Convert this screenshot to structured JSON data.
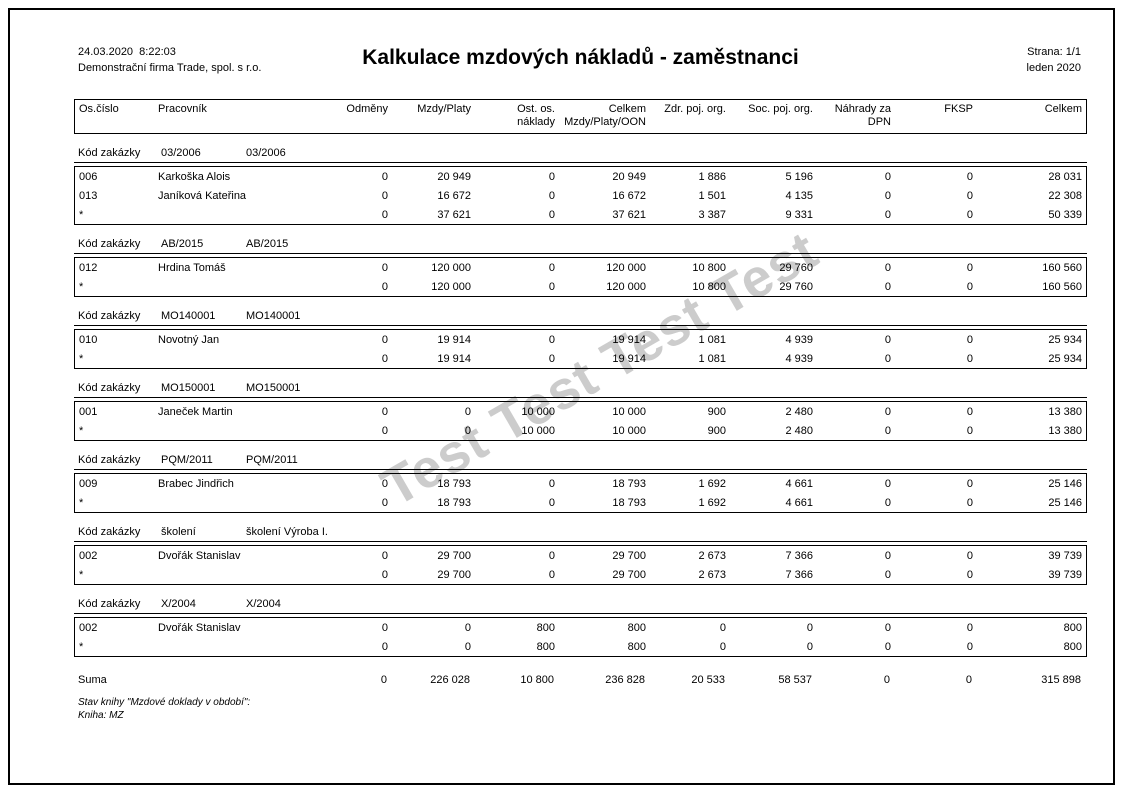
{
  "page": {
    "datetime": "24.03.2020  8:22:03",
    "company": "Demonstrační firma Trade, spol. s r.o.",
    "title": "Kalkulace mzdových nákladů - zaměstnanci",
    "page_label": "Strana: 1/1",
    "period": "leden 2020",
    "watermark": "Test Test Test Test"
  },
  "table": {
    "group_label": "Kód zakázky",
    "columns": [
      {
        "l1": "Os.číslo",
        "l2": ""
      },
      {
        "l1": "Pracovník",
        "l2": ""
      },
      {
        "l1": "Odměny",
        "l2": ""
      },
      {
        "l1": "Mzdy/Platy",
        "l2": ""
      },
      {
        "l1": "Ost. os.",
        "l2": "náklady"
      },
      {
        "l1": "Celkem",
        "l2": "Mzdy/Platy/OON"
      },
      {
        "l1": "Zdr. poj. org.",
        "l2": ""
      },
      {
        "l1": "Soc. poj. org.",
        "l2": ""
      },
      {
        "l1": "Náhrady za",
        "l2": "DPN"
      },
      {
        "l1": "FKSP",
        "l2": ""
      },
      {
        "l1": "Celkem",
        "l2": ""
      }
    ]
  },
  "groups": [
    {
      "code": "03/2006",
      "name": "03/2006",
      "rows": [
        {
          "id": "006",
          "worker": "Karkoška Alois",
          "values": [
            "0",
            "20 949",
            "0",
            "20 949",
            "1 886",
            "5 196",
            "0",
            "0",
            "28 031"
          ]
        },
        {
          "id": "013",
          "worker": "Janíková Kateřina",
          "values": [
            "0",
            "16 672",
            "0",
            "16 672",
            "1 501",
            "4 135",
            "0",
            "0",
            "22 308"
          ]
        },
        {
          "id": "*",
          "worker": "",
          "values": [
            "0",
            "37 621",
            "0",
            "37 621",
            "3 387",
            "9 331",
            "0",
            "0",
            "50 339"
          ]
        }
      ]
    },
    {
      "code": "AB/2015",
      "name": "AB/2015",
      "rows": [
        {
          "id": "012",
          "worker": "Hrdina Tomáš",
          "values": [
            "0",
            "120 000",
            "0",
            "120 000",
            "10 800",
            "29 760",
            "0",
            "0",
            "160 560"
          ]
        },
        {
          "id": "*",
          "worker": "",
          "values": [
            "0",
            "120 000",
            "0",
            "120 000",
            "10 800",
            "29 760",
            "0",
            "0",
            "160 560"
          ]
        }
      ]
    },
    {
      "code": "MO140001",
      "name": "MO140001",
      "rows": [
        {
          "id": "010",
          "worker": "Novotný Jan",
          "values": [
            "0",
            "19 914",
            "0",
            "19 914",
            "1 081",
            "4 939",
            "0",
            "0",
            "25 934"
          ]
        },
        {
          "id": "*",
          "worker": "",
          "values": [
            "0",
            "19 914",
            "0",
            "19 914",
            "1 081",
            "4 939",
            "0",
            "0",
            "25 934"
          ]
        }
      ]
    },
    {
      "code": "MO150001",
      "name": "MO150001",
      "rows": [
        {
          "id": "001",
          "worker": "Janeček Martin",
          "values": [
            "0",
            "0",
            "10 000",
            "10 000",
            "900",
            "2 480",
            "0",
            "0",
            "13 380"
          ]
        },
        {
          "id": "*",
          "worker": "",
          "values": [
            "0",
            "0",
            "10 000",
            "10 000",
            "900",
            "2 480",
            "0",
            "0",
            "13 380"
          ]
        }
      ]
    },
    {
      "code": "PQM/2011",
      "name": "PQM/2011",
      "rows": [
        {
          "id": "009",
          "worker": "Brabec Jindřich",
          "values": [
            "0",
            "18 793",
            "0",
            "18 793",
            "1 692",
            "4 661",
            "0",
            "0",
            "25 146"
          ]
        },
        {
          "id": "*",
          "worker": "",
          "values": [
            "0",
            "18 793",
            "0",
            "18 793",
            "1 692",
            "4 661",
            "0",
            "0",
            "25 146"
          ]
        }
      ]
    },
    {
      "code": "školení",
      "name": "školení Výroba I.",
      "rows": [
        {
          "id": "002",
          "worker": "Dvořák Stanislav",
          "values": [
            "0",
            "29 700",
            "0",
            "29 700",
            "2 673",
            "7 366",
            "0",
            "0",
            "39 739"
          ]
        },
        {
          "id": "*",
          "worker": "",
          "values": [
            "0",
            "29 700",
            "0",
            "29 700",
            "2 673",
            "7 366",
            "0",
            "0",
            "39 739"
          ]
        }
      ]
    },
    {
      "code": "X/2004",
      "name": "X/2004",
      "rows": [
        {
          "id": "002",
          "worker": "Dvořák Stanislav",
          "values": [
            "0",
            "0",
            "800",
            "800",
            "0",
            "0",
            "0",
            "0",
            "800"
          ]
        },
        {
          "id": "*",
          "worker": "",
          "values": [
            "0",
            "0",
            "800",
            "800",
            "0",
            "0",
            "0",
            "0",
            "800"
          ]
        }
      ]
    }
  ],
  "summary": {
    "label": "Suma",
    "values": [
      "0",
      "226 028",
      "10 800",
      "236 828",
      "20 533",
      "58 537",
      "0",
      "0",
      "315 898"
    ]
  },
  "footer": {
    "line1": "Stav knihy \"Mzdové doklady v období\":",
    "line2": "Kniha: MZ"
  }
}
